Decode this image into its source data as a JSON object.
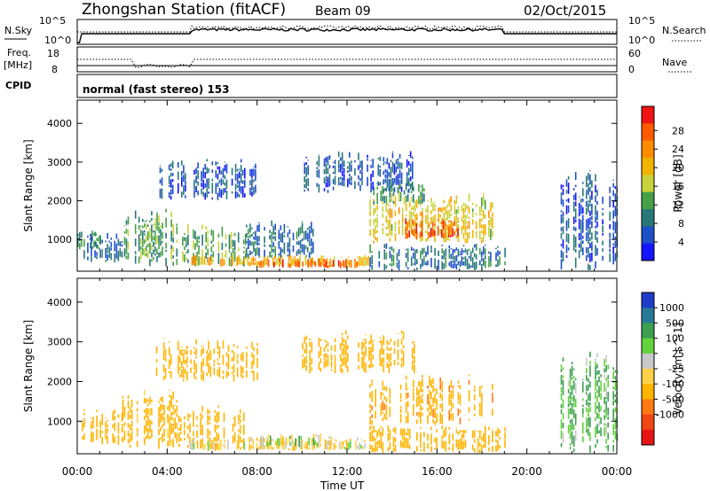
{
  "header": {
    "station": "Zhongshan Station (fitACF)",
    "beam": "Beam 09",
    "date": "02/Oct/2015"
  },
  "labels": {
    "nsky": "N.Sky",
    "nsearch": "N.Search",
    "freq": "Freq.",
    "freq_unit": "[MHz]",
    "nave": "Nave",
    "cpid": "CPID",
    "cpid_value": "normal (fast stereo) 153",
    "noise_ticks_left": [
      "10^5",
      "10^0"
    ],
    "noise_ticks_right": [
      "10^5",
      "10^0"
    ],
    "freq_ticks": [
      "18",
      "8"
    ],
    "nave_ticks": [
      "60",
      "0"
    ]
  },
  "chart_data": [
    {
      "type": "heatmap",
      "name": "power",
      "ylabel": "Slant Range [km]",
      "xlabel": "Time UT",
      "ylim": [
        180,
        4600
      ],
      "yticks": [
        1000,
        2000,
        3000,
        4000
      ],
      "xticks": [
        "00:00",
        "04:00",
        "08:00",
        "12:00",
        "16:00",
        "20:00",
        "00:00"
      ],
      "colorbar_label": "Power [dB]",
      "colorbar_ticks": [
        "4",
        "8",
        "12",
        "16",
        "20",
        "24",
        "28"
      ],
      "colorbar_colors": [
        "#1414ff",
        "#1e50c8",
        "#287878",
        "#46a046",
        "#c8d23c",
        "#f0b400",
        "#ff8c00",
        "#ff5a00",
        "#f01414"
      ],
      "blocks": [
        {
          "t": 0.2,
          "t2": 2.0,
          "r1": 400,
          "r2": 1200,
          "level": 8
        },
        {
          "t": 0.0,
          "t2": 1.0,
          "r1": 700,
          "r2": 1300,
          "level": 10
        },
        {
          "t": 2.0,
          "t2": 4.5,
          "r1": 300,
          "r2": 1800,
          "level": 12
        },
        {
          "t": 4.5,
          "t2": 7.5,
          "r1": 300,
          "r2": 1400,
          "level": 12
        },
        {
          "t": 7.5,
          "t2": 10.5,
          "r1": 500,
          "r2": 1500,
          "level": 8
        },
        {
          "t": 5.0,
          "t2": 13.0,
          "r1": 300,
          "r2": 600,
          "level": 20
        },
        {
          "t": 8.0,
          "t2": 12.5,
          "r1": 250,
          "r2": 500,
          "level": 26
        },
        {
          "t": 13.0,
          "t2": 18.5,
          "r1": 900,
          "r2": 2200,
          "level": 18
        },
        {
          "t": 14.5,
          "t2": 17.0,
          "r1": 1000,
          "r2": 1600,
          "level": 27
        },
        {
          "t": 13.0,
          "t2": 15.5,
          "r1": 1900,
          "r2": 2500,
          "level": 12
        },
        {
          "t": 13.0,
          "t2": 19.0,
          "r1": 200,
          "r2": 900,
          "level": 8
        },
        {
          "t": 21.5,
          "t2": 24.0,
          "r1": 200,
          "r2": 2800,
          "level": 6
        },
        {
          "t": 3.5,
          "t2": 8.0,
          "r1": 2000,
          "r2": 3100,
          "level": 6
        },
        {
          "t": 10.0,
          "t2": 15.0,
          "r1": 2200,
          "r2": 3300,
          "level": 6
        }
      ]
    },
    {
      "type": "heatmap",
      "name": "velocity",
      "ylabel": "Slant Range [km]",
      "xlabel": "Time UT",
      "ylim": [
        180,
        4600
      ],
      "yticks": [
        1000,
        2000,
        3000,
        4000
      ],
      "xticks": [
        "00:00",
        "04:00",
        "08:00",
        "12:00",
        "16:00",
        "20:00",
        "00:00"
      ],
      "colorbar_label": "Velocity [m s^-1]",
      "colorbar_ticks": [
        "1000",
        "500",
        "100",
        "25",
        "-25",
        "-100",
        "-500",
        "-1000"
      ],
      "colorbar_colors": [
        "#1e3cc8",
        "#28789a",
        "#3ca050",
        "#64d23c",
        "#c8c8c8",
        "#ffd24a",
        "#ffb400",
        "#ff7814",
        "#f04614",
        "#e61414"
      ],
      "blocks": [
        {
          "t": 0.2,
          "t2": 2.0,
          "r1": 400,
          "r2": 1300,
          "level": -300
        },
        {
          "t": 2.0,
          "t2": 4.5,
          "r1": 300,
          "r2": 1800,
          "level": -200
        },
        {
          "t": 4.5,
          "t2": 7.5,
          "r1": 300,
          "r2": 1400,
          "level": -250
        },
        {
          "t": 5.0,
          "t2": 13.0,
          "r1": 250,
          "r2": 600,
          "level": -80
        },
        {
          "t": 8.0,
          "t2": 11.5,
          "r1": 350,
          "r2": 700,
          "level": 10
        },
        {
          "t": 13.0,
          "t2": 18.5,
          "r1": 900,
          "r2": 2200,
          "level": -400
        },
        {
          "t": 13.0,
          "t2": 19.0,
          "r1": 200,
          "r2": 900,
          "level": -300
        },
        {
          "t": 21.5,
          "t2": 24.0,
          "r1": 200,
          "r2": 2800,
          "level": 120
        },
        {
          "t": 3.5,
          "t2": 8.0,
          "r1": 2000,
          "r2": 3100,
          "level": -300
        },
        {
          "t": 10.0,
          "t2": 15.0,
          "r1": 2200,
          "r2": 3300,
          "level": -300
        }
      ]
    }
  ]
}
